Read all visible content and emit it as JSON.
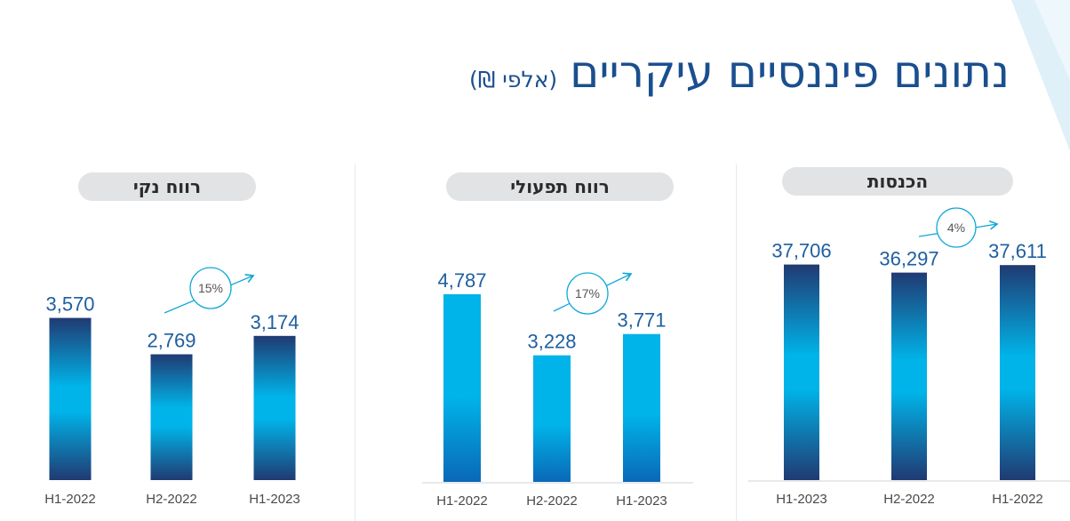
{
  "title": {
    "main": "נתונים פיננסיים עיקריים",
    "unit": "(אלפי ₪)"
  },
  "colors": {
    "title": "#1a4f8f",
    "bar_dark": "#203a72",
    "bar_light": "#00b3e8",
    "bar_deep": "#0a68b8",
    "label": "#1f5fa0",
    "growth": "#11a8d8",
    "pill_bg": "#e2e3e5"
  },
  "chart_data": [
    {
      "type": "bar",
      "title": "רווח נקי",
      "categories": [
        "H1-2022",
        "H2-2022",
        "H1-2023"
      ],
      "values": [
        3570,
        2769,
        3174
      ],
      "value_labels": [
        "3,570",
        "2,769",
        "3,174"
      ],
      "annotation": "15%",
      "axis_line": false
    },
    {
      "type": "bar",
      "title": "רווח תפעולי",
      "categories": [
        "H1-2022",
        "H2-2022",
        "H1-2023"
      ],
      "values": [
        4787,
        3228,
        3771
      ],
      "value_labels": [
        "4,787",
        "3,228",
        "3,771"
      ],
      "annotation": "17%",
      "axis_line": true
    },
    {
      "type": "bar",
      "title": "הכנסות",
      "categories": [
        "H1-2023",
        "H2-2022",
        "H1-2022"
      ],
      "values": [
        37706,
        36297,
        37611
      ],
      "value_labels": [
        "37,706",
        "36,297",
        "37,611"
      ],
      "annotation": "4%",
      "axis_line": true
    }
  ]
}
